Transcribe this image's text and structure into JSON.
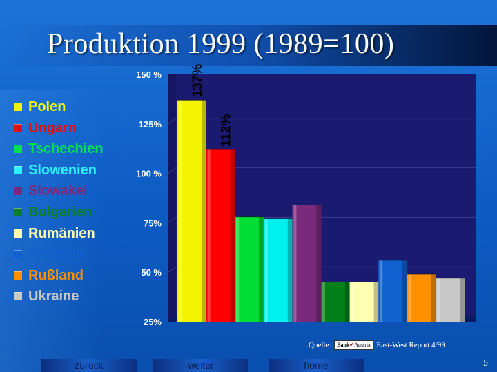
{
  "title": "Produktion 1999 (1989=100)",
  "chart_data": {
    "type": "bar",
    "categories": [
      "Polen",
      "Ungarn",
      "Tschechien",
      "Slowenien",
      "Slowakei",
      "Bulgarien",
      "Rumänien",
      "Kroatien",
      "Rußland",
      "Ukraine"
    ],
    "values": [
      137,
      112,
      78,
      77,
      84,
      45,
      45,
      56,
      49,
      47
    ],
    "colors": [
      "#f4f400",
      "#ff0000",
      "#00dd33",
      "#00f0f0",
      "#7a2a7a",
      "#007f1a",
      "#ffffb0",
      "#1060d0",
      "#ff9000",
      "#c8c8c8"
    ],
    "data_labels": [
      "137%",
      "112%",
      "",
      "",
      "",
      "",
      "",
      "",
      "",
      ""
    ],
    "y_ticks": [
      "150 %",
      "125%",
      "100 %",
      "75%",
      "50 %",
      "25%"
    ],
    "ylim": [
      25,
      150
    ],
    "grid": true,
    "legend": "left"
  },
  "legend": [
    {
      "label": "Polen",
      "color": "#f4f400"
    },
    {
      "label": "Ungarn",
      "color": "#e01010"
    },
    {
      "label": "Tschechien",
      "color": "#00e050"
    },
    {
      "label": "Slowenien",
      "color": "#30f0ff"
    },
    {
      "label": "Slowakei",
      "color": "#7a2a7a"
    },
    {
      "label": "Bulgarien",
      "color": "#0c7d2a"
    },
    {
      "label": "Rumänien",
      "color": "#ffffb0"
    },
    {
      "label": "Kroatien",
      "color": "#1060d0"
    },
    {
      "label": "Rußland",
      "color": "#ff9000"
    },
    {
      "label": "Ukraine",
      "color": "#c8c8c8"
    }
  ],
  "source": {
    "prefix": "Quelle:",
    "logo_left": "Bank",
    "logo_right": "Austria",
    "suffix": "East-West Report 4/99"
  },
  "nav": {
    "back": "zurück",
    "next": "weiter",
    "home": "home"
  },
  "page_number": "5"
}
